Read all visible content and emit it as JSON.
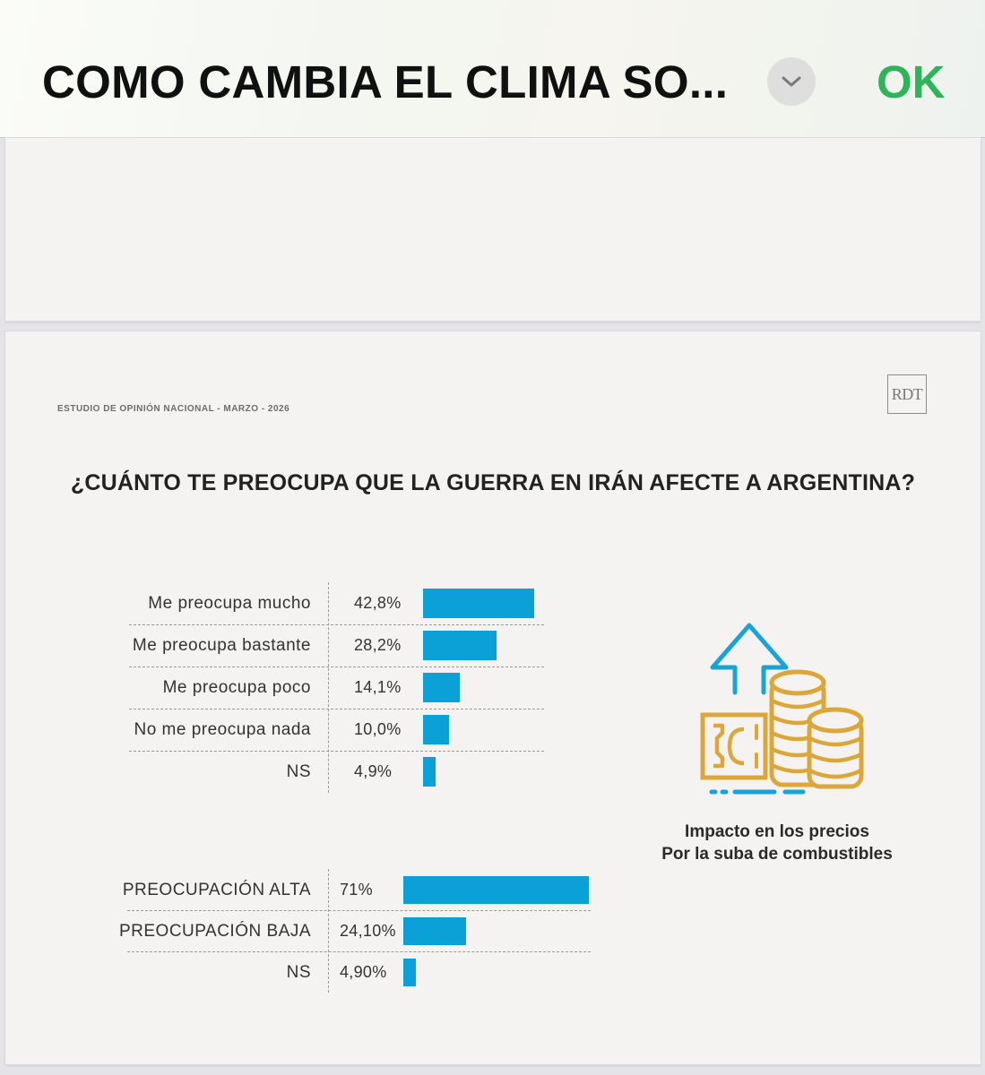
{
  "topbar": {
    "title": "COMO CAMBIA EL CLIMA SO...",
    "ok_label": "OK"
  },
  "slide": {
    "study_label": "ESTUDIO DE OPINIÓN NACIONAL - MARZO - 2026",
    "logo_text": "RDT",
    "question": "¿CUÁNTO TE PREOCUPA QUE LA GUERRA EN IRÁN AFECTE A ARGENTINA?",
    "caption_line1": "Impacto en los precios",
    "caption_line2": "Por la suba de combustibles"
  },
  "chart_data": [
    {
      "type": "bar",
      "orientation": "horizontal",
      "categories": [
        "Me preocupa mucho",
        "Me preocupa bastante",
        "Me preocupa poco",
        "No me preocupa nada",
        "NS"
      ],
      "value_labels": [
        "42,8%",
        "28,2%",
        "14,1%",
        "10,0%",
        "4,9%"
      ],
      "values": [
        42.8,
        28.2,
        14.1,
        10.0,
        4.9
      ],
      "unit": "%"
    },
    {
      "type": "bar",
      "orientation": "horizontal",
      "categories": [
        "PREOCUPACIÓN ALTA",
        "PREOCUPACIÓN BAJA",
        "NS"
      ],
      "value_labels": [
        "71%",
        "24,10%",
        "4,90%"
      ],
      "values": [
        71,
        24.1,
        4.9
      ],
      "unit": "%"
    }
  ],
  "colors": {
    "bar": "#0ba1d6",
    "icon_blue": "#1aa3d8",
    "icon_gold": "#dba73a",
    "ok_green": "#2fb459"
  },
  "icons": [
    "chevron-down-icon",
    "price-increase-icon"
  ]
}
